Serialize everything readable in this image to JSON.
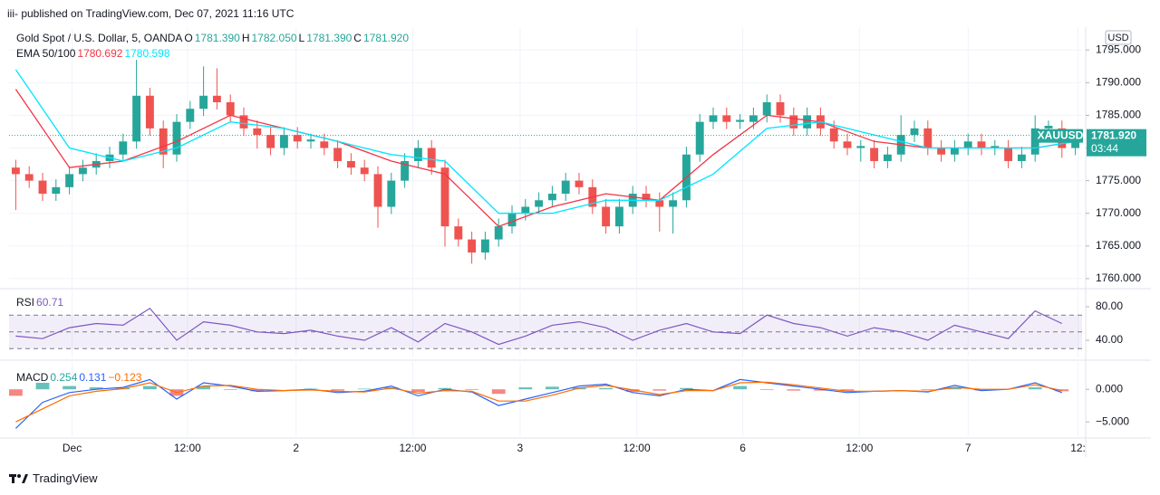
{
  "header": {
    "published": "iii- published on TradingView.com, Dec 07, 2021 11:16 UTC",
    "logo": "TradingView"
  },
  "chart_data": [
    {
      "type": "candlestick",
      "title": "Gold Spot / U.S. Dollar, 5, OANDA",
      "ohlc": [
        {
          "name": "O",
          "value": "1781.390"
        },
        {
          "name": "H",
          "value": "1782.050"
        },
        {
          "name": "L",
          "value": "1781.390"
        },
        {
          "name": "C",
          "value": "1781.920"
        }
      ],
      "currency": "USD",
      "symbol": "XAUUSD",
      "countdown": "03:44",
      "last_price": {
        "value": 1781.92,
        "label": "1781.920"
      },
      "up_color": "#26a69a",
      "down_color": "#ef5350",
      "open": [
        1777,
        1776,
        1775,
        1773,
        1774,
        1776,
        1777,
        1778,
        1779,
        1781,
        1788,
        1783,
        1779,
        1784,
        1786,
        1788,
        1787,
        1785,
        1783,
        1782,
        1780,
        1782,
        1781,
        1781,
        1780,
        1778,
        1777,
        1776,
        1771,
        1775,
        1778,
        1780,
        1777,
        1768,
        1766,
        1764,
        1766,
        1768,
        1770,
        1771,
        1772,
        1773,
        1775,
        1774,
        1771,
        1768,
        1771,
        1773,
        1772,
        1771,
        1772,
        1779,
        1784,
        1785,
        1784,
        1784,
        1785,
        1787,
        1785,
        1783,
        1785,
        1783,
        1781,
        1780,
        1780,
        1778,
        1779,
        1782,
        1783,
        1780,
        1779,
        1780,
        1781,
        1780,
        1780,
        1778,
        1779,
        1783,
        1783,
        1780
      ],
      "high": [
        1778.2,
        1777.2,
        1776.2,
        1775.2,
        1777.2,
        1778.2,
        1779.2,
        1780.2,
        1782.2,
        1793.5,
        1789.2,
        1784.2,
        1785.2,
        1787.2,
        1792.5,
        1792.2,
        1788.2,
        1786.2,
        1784.2,
        1783.2,
        1783.2,
        1783.2,
        1782.2,
        1782.2,
        1781.2,
        1779.2,
        1778.2,
        1777.2,
        1776.2,
        1779.2,
        1781.2,
        1781.2,
        1778.2,
        1769.2,
        1767.2,
        1767.2,
        1769.2,
        1771.2,
        1772.2,
        1773.2,
        1774.2,
        1776.2,
        1776.2,
        1775.2,
        1772.2,
        1772.2,
        1774.2,
        1774.2,
        1773.2,
        1773.2,
        1780.2,
        1785.2,
        1786.2,
        1786.2,
        1785.2,
        1786.2,
        1788.2,
        1788.2,
        1786.2,
        1786.2,
        1786.2,
        1784.2,
        1782.2,
        1781.2,
        1781.2,
        1780.2,
        1785,
        1784.2,
        1784.2,
        1781.2,
        1781.2,
        1782.2,
        1782.2,
        1781.2,
        1781.2,
        1780.2,
        1785,
        1784.2,
        1784.2,
        1782.5
      ],
      "low": [
        1770.5,
        1773.9,
        1771.9,
        1771.9,
        1772.9,
        1774.9,
        1775.9,
        1776.9,
        1777.9,
        1779.9,
        1781.9,
        1776.9,
        1777.9,
        1782.9,
        1784.9,
        1785.9,
        1783.9,
        1781.9,
        1779.9,
        1778.9,
        1778.9,
        1779.9,
        1779.9,
        1778.9,
        1776.9,
        1775.9,
        1774.9,
        1767.8,
        1769.9,
        1773.9,
        1776.9,
        1775.9,
        1764.9,
        1764.9,
        1762.3,
        1762.9,
        1764.9,
        1766.9,
        1768.9,
        1769.9,
        1770.9,
        1771.9,
        1772.9,
        1769.9,
        1766.9,
        1766.9,
        1769.9,
        1770.9,
        1767.2,
        1766.9,
        1770.9,
        1777.9,
        1782.9,
        1782.9,
        1782.9,
        1782.9,
        1783.9,
        1783.9,
        1781.9,
        1781.9,
        1781.9,
        1779.9,
        1778.9,
        1777.9,
        1776.9,
        1776.9,
        1777.9,
        1780.9,
        1778.9,
        1777.9,
        1777.9,
        1778.9,
        1778.9,
        1778.9,
        1776.9,
        1776.9,
        1777.9,
        1781.9,
        1778.5,
        1778.9
      ],
      "close": [
        1776,
        1775,
        1773,
        1774,
        1776,
        1777,
        1778,
        1779,
        1781,
        1788,
        1783,
        1779,
        1784,
        1786,
        1788,
        1787,
        1785,
        1783,
        1782,
        1780,
        1782,
        1781,
        1781.3,
        1780,
        1778,
        1777,
        1776,
        1771,
        1775,
        1778,
        1780,
        1777,
        1768,
        1766,
        1764,
        1766,
        1768,
        1770,
        1771,
        1772,
        1773,
        1775,
        1774,
        1771,
        1768,
        1771,
        1773,
        1772,
        1771,
        1772,
        1779,
        1784,
        1785,
        1784,
        1784.3,
        1785,
        1787,
        1785,
        1783,
        1785,
        1783,
        1781,
        1780,
        1780.3,
        1778,
        1779,
        1782,
        1783,
        1780,
        1779,
        1780,
        1781,
        1780,
        1780.3,
        1778,
        1779,
        1783,
        1783.4,
        1780,
        1781.92
      ],
      "xlim": [
        -0.5,
        79.5
      ],
      "xticks": [
        {
          "value": 4.2,
          "label": "Dec"
        },
        {
          "value": 12.8,
          "label": "12:00"
        },
        {
          "value": 20.9,
          "label": "2"
        },
        {
          "value": 29.6,
          "label": "12:00"
        },
        {
          "value": 37.6,
          "label": "3"
        },
        {
          "value": 46.3,
          "label": "12:00"
        },
        {
          "value": 54.2,
          "label": "6"
        },
        {
          "value": 62.9,
          "label": "12:00"
        },
        {
          "value": 71.0,
          "label": "7"
        },
        {
          "value": 79.2,
          "label": "12:"
        }
      ],
      "ylim": [
        1758.6,
        1798.5
      ],
      "yticks": [
        {
          "value": 1760,
          "label": "1760.000"
        },
        {
          "value": 1765,
          "label": "1765.000"
        },
        {
          "value": 1770,
          "label": "1770.000"
        },
        {
          "value": 1775,
          "label": "1775.000"
        },
        {
          "value": 1780,
          "label": "1780.000"
        },
        {
          "value": 1785,
          "label": "1785.000"
        },
        {
          "value": 1790,
          "label": "1790.000"
        },
        {
          "value": 1795,
          "label": "1795.000"
        }
      ],
      "grid": true,
      "overlays": {
        "name": "EMA 50/100",
        "x": [
          0,
          4,
          8,
          12,
          16,
          20,
          24,
          28,
          32,
          36,
          40,
          44,
          48,
          52,
          56,
          60,
          64,
          68,
          72,
          76,
          79
        ],
        "series": [
          {
            "value_label": "1780.692",
            "color": "#f23645",
            "values": [
              1789,
              1777,
              1778,
              1781,
              1785,
              1783,
              1781,
              1778,
              1776,
              1768,
              1771,
              1773,
              1772,
              1779,
              1785,
              1784,
              1781,
              1780,
              1780,
              1780,
              1781
            ]
          },
          {
            "value_label": "1780.598",
            "color": "#00e5ff",
            "values": [
              1792,
              1780,
              1778,
              1780,
              1784,
              1783,
              1781,
              1779,
              1778,
              1770,
              1770,
              1772,
              1772,
              1776,
              1783,
              1784,
              1782,
              1780,
              1780,
              1780,
              1781
            ]
          }
        ]
      }
    },
    {
      "type": "line",
      "title": "RSI",
      "value_label": "60.71",
      "color": "#7e57c2",
      "x": [
        0,
        2,
        4,
        6,
        8,
        10,
        12,
        14,
        16,
        18,
        20,
        22,
        24,
        26,
        28,
        30,
        32,
        34,
        36,
        38,
        40,
        42,
        44,
        46,
        48,
        50,
        52,
        54,
        56,
        58,
        60,
        62,
        64,
        66,
        68,
        70,
        72,
        74,
        76,
        78
      ],
      "values": [
        45,
        42,
        55,
        60,
        58,
        78,
        40,
        62,
        58,
        50,
        48,
        52,
        45,
        40,
        55,
        38,
        60,
        50,
        35,
        45,
        58,
        62,
        55,
        40,
        52,
        60,
        50,
        48,
        70,
        60,
        55,
        45,
        55,
        50,
        40,
        58,
        50,
        42,
        75,
        60
      ],
      "bands": [
        30,
        50,
        70
      ],
      "ylim": [
        19.5,
        100.5
      ],
      "yticks": [
        {
          "value": 40,
          "label": "40.00"
        },
        {
          "value": 80,
          "label": "80.00"
        }
      ]
    },
    {
      "type": "combo",
      "title": "MACD",
      "x": [
        0,
        2,
        4,
        6,
        8,
        10,
        12,
        14,
        16,
        18,
        20,
        22,
        24,
        26,
        28,
        30,
        32,
        34,
        36,
        38,
        40,
        42,
        44,
        46,
        48,
        50,
        52,
        54,
        56,
        58,
        60,
        62,
        64,
        66,
        68,
        70,
        72,
        74,
        76,
        78
      ],
      "series": [
        {
          "kind": "histogram",
          "value_label": "0.254",
          "color": "#26a69a",
          "neg_color": "#ef5350",
          "values": [
            -1,
            1,
            0.5,
            0.3,
            0.2,
            0.5,
            -1,
            0.5,
            -0.1,
            -0.3,
            0,
            0.1,
            -0.2,
            0.1,
            0.3,
            -0.4,
            0.2,
            -0.1,
            -0.7,
            0.3,
            0.4,
            0.3,
            0.2,
            -0.4,
            -0.2,
            0.2,
            0,
            0.5,
            -0.1,
            -0.2,
            -0.2,
            -0.2,
            0,
            0,
            -0.1,
            0.3,
            -0.2,
            0,
            0.3,
            -0.3
          ]
        },
        {
          "kind": "line",
          "value_label": "0.131",
          "color": "#2962ff",
          "values": [
            -6,
            -2,
            -0.5,
            0,
            0.3,
            1.5,
            -1.5,
            1,
            0.5,
            -0.3,
            -0.2,
            0,
            -0.5,
            -0.3,
            0.5,
            -1,
            0,
            -0.4,
            -2.5,
            -1.5,
            -0.5,
            0.5,
            0.8,
            -0.5,
            -1,
            0,
            -0.2,
            1.5,
            1,
            0.5,
            0,
            -0.5,
            -0.3,
            -0.2,
            -0.4,
            0.6,
            -0.2,
            0,
            1,
            -0.5
          ]
        },
        {
          "kind": "line",
          "value_label": "−0.123",
          "color": "#ff6d00",
          "values": [
            -5,
            -3,
            -1,
            -0.3,
            0.1,
            1,
            -0.5,
            0.5,
            0.6,
            0,
            -0.2,
            -0.1,
            -0.3,
            -0.4,
            0.2,
            -0.6,
            -0.2,
            -0.3,
            -1.8,
            -1.8,
            -0.9,
            0.2,
            0.6,
            -0.1,
            -0.8,
            -0.2,
            -0.2,
            1,
            1.1,
            0.7,
            0.2,
            -0.3,
            -0.3,
            -0.2,
            -0.3,
            0.3,
            0,
            0,
            0.7,
            -0.2
          ]
        }
      ],
      "ylim": [
        -7.2,
        4.2
      ],
      "yticks": [
        {
          "value": -5,
          "label": "−5.000"
        },
        {
          "value": 0,
          "label": "0.000"
        }
      ]
    }
  ]
}
